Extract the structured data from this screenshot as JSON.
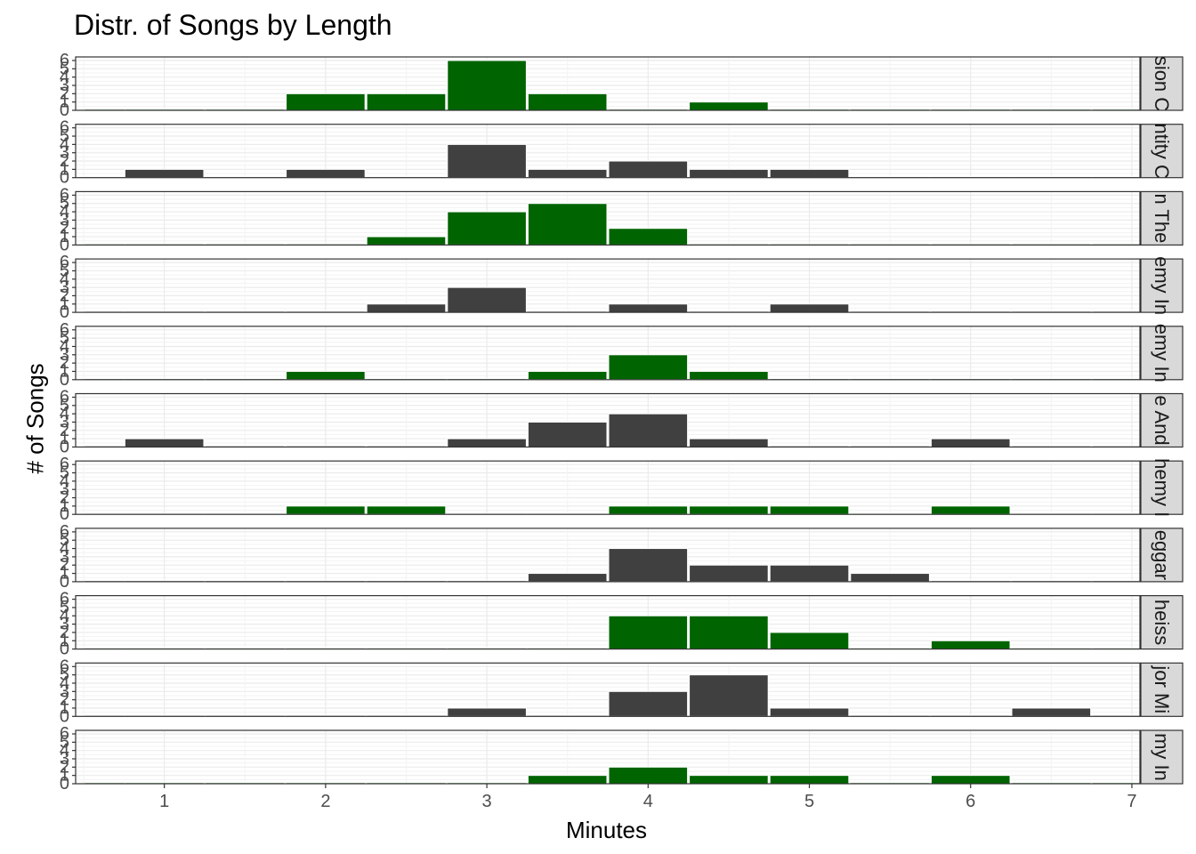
{
  "chart_data": {
    "type": "bar",
    "title": "Distr. of Songs by Length",
    "xlabel": "Minutes",
    "ylabel": "# of Songs",
    "x": [
      0.75,
      1,
      1.5,
      2,
      2.5,
      3,
      3.5,
      4,
      4.5,
      5,
      5.5,
      6,
      6.5,
      7
    ],
    "bin_width": 0.5,
    "xlim": [
      0.45,
      7.05
    ],
    "ylim": [
      0,
      6
    ],
    "xticks": [
      1,
      2,
      3,
      4,
      5,
      6,
      7
    ],
    "yticks": [
      0,
      1,
      2,
      3,
      4,
      5,
      6
    ],
    "grid": true,
    "panels": [
      {
        "strip": "sion C",
        "color": "#006400",
        "values": [
          0,
          0,
          0,
          2,
          2,
          6,
          2,
          0,
          1,
          0,
          0,
          0,
          0,
          0
        ]
      },
      {
        "strip": "ntity C",
        "color": "#404040",
        "values": [
          0,
          1,
          0,
          1,
          0,
          4,
          1,
          2,
          1,
          1,
          0,
          0,
          0,
          0
        ]
      },
      {
        "strip": "n The",
        "color": "#006400",
        "values": [
          0,
          0,
          0,
          0,
          1,
          4,
          5,
          2,
          0,
          0,
          0,
          0,
          0,
          0
        ]
      },
      {
        "strip": "emy In",
        "color": "#404040",
        "values": [
          0,
          0,
          0,
          0,
          1,
          3,
          0,
          1,
          0,
          1,
          0,
          0,
          0,
          0
        ]
      },
      {
        "strip": "emy In",
        "color": "#006400",
        "values": [
          0,
          0,
          0,
          1,
          0,
          0,
          1,
          3,
          1,
          0,
          0,
          0,
          0,
          0
        ]
      },
      {
        "strip": "e And",
        "color": "#404040",
        "values": [
          0,
          1,
          0,
          0,
          0,
          1,
          3,
          4,
          1,
          0,
          0,
          1,
          0,
          0
        ]
      },
      {
        "strip": "hemy I",
        "color": "#006400",
        "values": [
          0,
          0,
          0,
          1,
          1,
          0,
          0,
          1,
          1,
          1,
          0,
          1,
          0,
          0
        ]
      },
      {
        "strip": "eggar",
        "color": "#404040",
        "values": [
          0,
          0,
          0,
          0,
          0,
          0,
          1,
          4,
          2,
          2,
          1,
          0,
          0,
          0
        ]
      },
      {
        "strip": "heiss",
        "color": "#006400",
        "values": [
          0,
          0,
          0,
          0,
          0,
          0,
          0,
          4,
          4,
          2,
          0,
          1,
          0,
          0
        ]
      },
      {
        "strip": "jor Mi",
        "color": "#404040",
        "values": [
          0,
          0,
          0,
          0,
          0,
          1,
          0,
          3,
          5,
          1,
          0,
          0,
          1,
          0
        ]
      },
      {
        "strip": "my In",
        "color": "#006400",
        "values": [
          0,
          0,
          0,
          0,
          0,
          0,
          1,
          2,
          1,
          1,
          0,
          1,
          0,
          0
        ]
      }
    ]
  }
}
